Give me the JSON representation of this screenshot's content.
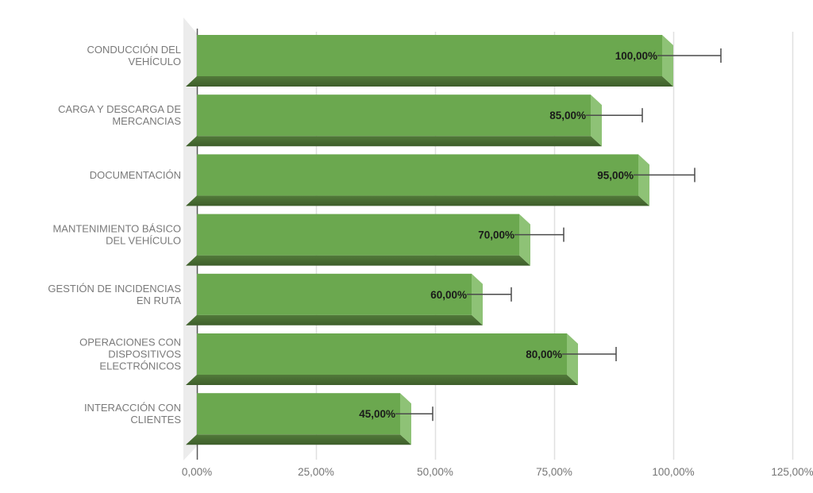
{
  "chart_data": {
    "type": "bar",
    "orientation": "horizontal",
    "title": "",
    "xlabel": "",
    "ylabel": "",
    "xlim": [
      0,
      125
    ],
    "grid": true,
    "legend": false,
    "categories": [
      "CONDUCCIÓN DEL VEHÍCULO",
      "CARGA Y DESCARGA DE MERCANCIAS",
      "DOCUMENTACIÓN",
      "MANTENIMIENTO BÁSICO DEL VEHÍCULO",
      "GESTIÓN DE INCIDENCIAS EN RUTA",
      "OPERACIONES CON DISPOSITIVOS ELECTRÓNICOS",
      "INTERACCIÓN CON CLIENTES"
    ],
    "category_lines": [
      [
        "CONDUCCIÓN DEL",
        "VEHÍCULO"
      ],
      [
        "CARGA Y DESCARGA DE",
        "MERCANCIAS"
      ],
      [
        "DOCUMENTACIÓN"
      ],
      [
        "MANTENIMIENTO BÁSICO",
        "DEL VEHÍCULO"
      ],
      [
        "GESTIÓN DE INCIDENCIAS",
        "EN RUTA"
      ],
      [
        "OPERACIONES CON",
        "DISPOSITIVOS",
        "ELECTRÓNICOS"
      ],
      [
        "INTERACCIÓN CON",
        "CLIENTES"
      ]
    ],
    "values": [
      100,
      85,
      95,
      70,
      60,
      80,
      45
    ],
    "value_labels": [
      "100,00%",
      "85,00%",
      "95,00%",
      "70,00%",
      "60,00%",
      "80,00%",
      "45,00%"
    ],
    "errors_plus": [
      10,
      8.5,
      9.5,
      7,
      6,
      8,
      4.5
    ],
    "x_tick_values": [
      0,
      25,
      50,
      75,
      100,
      125
    ],
    "x_tick_labels": [
      "0,00%",
      "25,00%",
      "50,00%",
      "75,00%",
      "100,00%",
      "125,00%"
    ],
    "colors": {
      "bar_face": "#6ba84f",
      "bar_bottom_top": "#527a3a",
      "bar_bottom_bottom": "#3e5e2b",
      "bar_side": "#8ec276",
      "wall": "#ececec",
      "gridline": "#e0e0e0",
      "axis_line": "#595959",
      "error_bar": "#4a4a4a",
      "value_label": "#1a1a1a",
      "category_label": "#7a7a7a",
      "tick_label": "#757575"
    }
  }
}
